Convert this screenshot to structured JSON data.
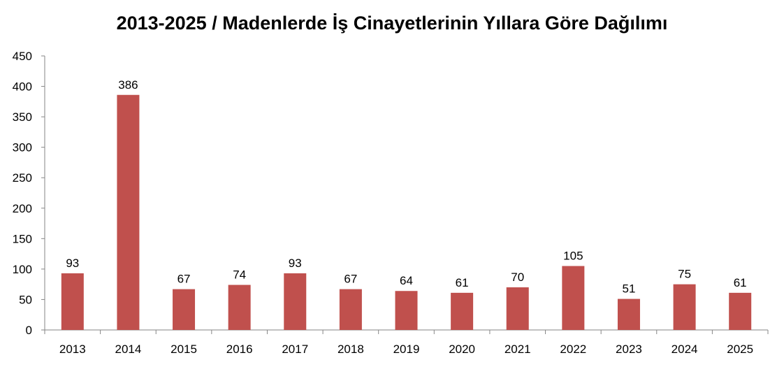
{
  "chart_data": {
    "type": "bar",
    "title": "2013-2025 / Madenlerde İş Cinayetlerinin Yıllara Göre Dağılımı",
    "xlabel": "",
    "ylabel": "",
    "categories": [
      "2013",
      "2014",
      "2015",
      "2016",
      "2017",
      "2018",
      "2019",
      "2020",
      "2021",
      "2022",
      "2023",
      "2024",
      "2025"
    ],
    "values": [
      93,
      386,
      67,
      74,
      93,
      67,
      64,
      61,
      70,
      105,
      51,
      75,
      61
    ],
    "ylim": [
      0,
      450
    ],
    "yticks": [
      0,
      50,
      100,
      150,
      200,
      250,
      300,
      350,
      400,
      450
    ],
    "grid": false,
    "legend": "none",
    "data_labels": true,
    "bar_color": "#c0504d"
  }
}
